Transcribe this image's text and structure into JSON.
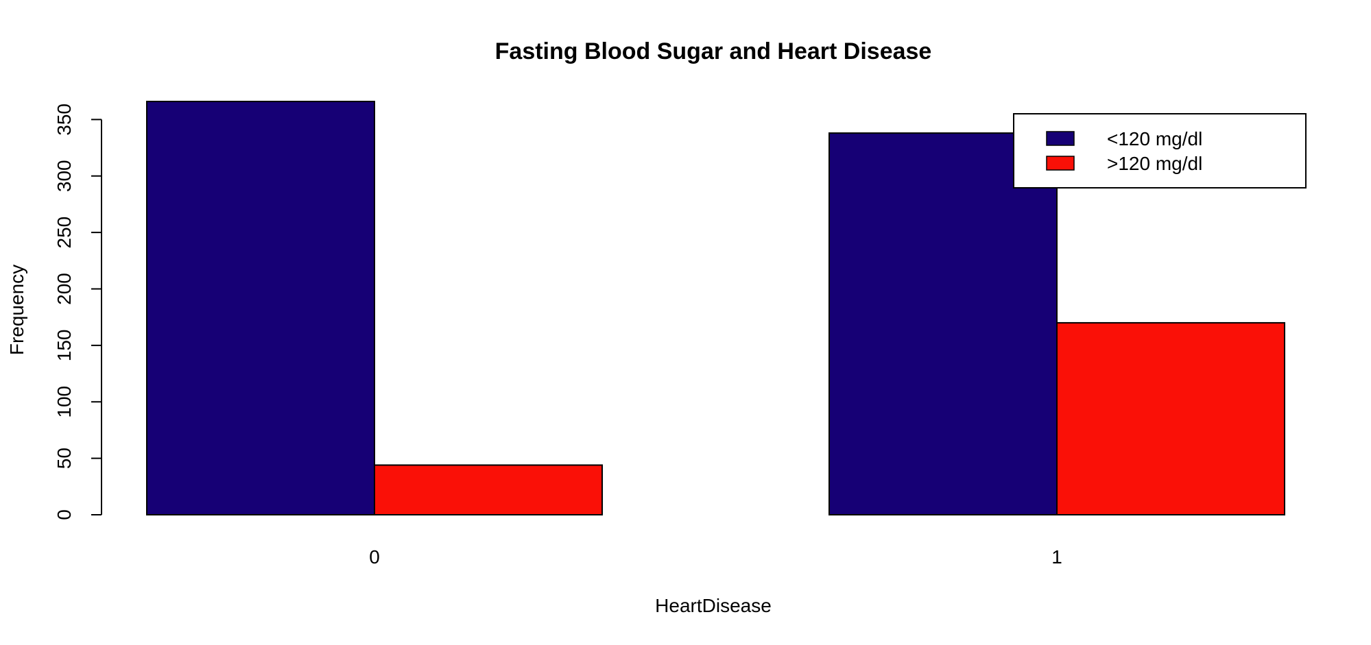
{
  "chart_data": {
    "type": "bar",
    "title": "Fasting Blood Sugar and Heart Disease",
    "xlabel": "HeartDisease",
    "ylabel": "Frequency",
    "categories": [
      "0",
      "1"
    ],
    "series": [
      {
        "name": "<120 mg/dl",
        "color": "#160075",
        "values": [
          366,
          338
        ]
      },
      {
        "name": ">120 mg/dl",
        "color": "#fa1007",
        "values": [
          44,
          170
        ]
      }
    ],
    "ylim": [
      0,
      366
    ],
    "yticks": [
      0,
      50,
      100,
      150,
      200,
      250,
      300,
      350
    ],
    "grid": false,
    "legend_position": "top-right",
    "bar_border_color": "#000000"
  }
}
